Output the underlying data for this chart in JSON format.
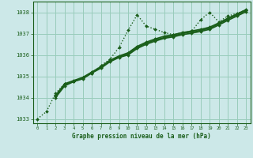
{
  "background_color": "#cce8e8",
  "grid_color": "#99ccbb",
  "line_color": "#1a5e1a",
  "xlabel": "Graphe pression niveau de la mer (hPa)",
  "ylim": [
    1032.8,
    1038.5
  ],
  "xlim": [
    -0.5,
    23.5
  ],
  "yticks": [
    1033,
    1034,
    1035,
    1036,
    1037,
    1038
  ],
  "xticks": [
    0,
    1,
    2,
    3,
    4,
    5,
    6,
    7,
    8,
    9,
    10,
    11,
    12,
    13,
    14,
    15,
    16,
    17,
    18,
    19,
    20,
    21,
    22,
    23
  ],
  "series": [
    {
      "x": [
        0,
        1,
        2,
        3,
        4,
        5,
        6,
        7,
        8,
        9,
        10,
        11,
        12,
        13,
        14,
        15,
        16,
        17,
        18,
        19,
        20,
        21,
        22,
        23
      ],
      "y": [
        1033.0,
        1033.35,
        1034.2,
        1034.65,
        1034.75,
        1034.95,
        1035.15,
        1035.5,
        1035.8,
        1036.35,
        1037.15,
        1037.88,
        1037.35,
        1037.2,
        1037.05,
        1036.95,
        1037.05,
        1037.1,
        1037.65,
        1038.0,
        1037.55,
        1037.82,
        1037.95,
        1038.1
      ],
      "style": "dotted",
      "linewidth": 1.0,
      "marker": "D",
      "markersize": 2.0
    },
    {
      "x": [
        2,
        3,
        4,
        5,
        6,
        7,
        8,
        9,
        10,
        11,
        12,
        13,
        14,
        15,
        16,
        17,
        18,
        19,
        20,
        21,
        22,
        23
      ],
      "y": [
        1034.1,
        1034.65,
        1034.8,
        1034.95,
        1035.2,
        1035.45,
        1035.75,
        1035.95,
        1036.1,
        1036.4,
        1036.6,
        1036.75,
        1036.88,
        1036.95,
        1037.05,
        1037.12,
        1037.2,
        1037.3,
        1037.5,
        1037.72,
        1037.92,
        1038.12
      ],
      "style": "solid",
      "linewidth": 1.2,
      "marker": "D",
      "markersize": 2.0
    },
    {
      "x": [
        2,
        3,
        4,
        5,
        6,
        7,
        8,
        9,
        10,
        11,
        12,
        13,
        14,
        15,
        16,
        17,
        18,
        19,
        20,
        21,
        22,
        23
      ],
      "y": [
        1034.05,
        1034.6,
        1034.78,
        1034.9,
        1035.18,
        1035.42,
        1035.72,
        1035.92,
        1036.05,
        1036.35,
        1036.55,
        1036.7,
        1036.82,
        1036.9,
        1037.0,
        1037.08,
        1037.15,
        1037.25,
        1037.45,
        1037.68,
        1037.88,
        1038.08
      ],
      "style": "solid",
      "linewidth": 1.2,
      "marker": "D",
      "markersize": 2.0
    },
    {
      "x": [
        2,
        3,
        4,
        5,
        6,
        7,
        8,
        9,
        10,
        11,
        12,
        13,
        14,
        15,
        16,
        17,
        18,
        19,
        20,
        21,
        22,
        23
      ],
      "y": [
        1034.0,
        1034.55,
        1034.75,
        1034.88,
        1035.15,
        1035.38,
        1035.68,
        1035.88,
        1036.0,
        1036.3,
        1036.5,
        1036.65,
        1036.78,
        1036.85,
        1036.95,
        1037.02,
        1037.1,
        1037.2,
        1037.4,
        1037.62,
        1037.82,
        1038.02
      ],
      "style": "solid",
      "linewidth": 1.2,
      "marker": "D",
      "markersize": 2.0
    }
  ]
}
